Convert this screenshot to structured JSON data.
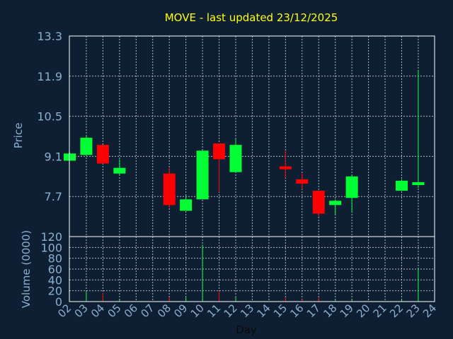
{
  "chart_data": {
    "type": "candlestick",
    "title": "MOVE - last updated 23/12/2025",
    "xlabel": "Day",
    "price_panel": {
      "ylabel": "Price",
      "ylim": [
        6.3,
        13.3
      ],
      "yticks": [
        "13.3",
        "11.9",
        "10.5",
        "9.1",
        "7.7"
      ],
      "ytick_values": [
        13.3,
        11.9,
        10.5,
        9.1,
        7.7
      ],
      "grid": true
    },
    "volume_panel": {
      "ylabel": "Volume (0000)",
      "ylim": [
        0,
        120
      ],
      "yticks": [
        "120",
        "100",
        "80",
        "60",
        "40",
        "20",
        "0"
      ],
      "ytick_values": [
        120,
        100,
        80,
        60,
        40,
        20,
        0
      ],
      "grid": true
    },
    "x_ticks": [
      "02",
      "03",
      "04",
      "05",
      "06",
      "07",
      "08",
      "09",
      "10",
      "11",
      "12",
      "13",
      "14",
      "15",
      "16",
      "17",
      "18",
      "19",
      "20",
      "21",
      "22",
      "23",
      "24"
    ],
    "up_color": "#00ff33",
    "down_color": "#ff0000",
    "candles": [
      {
        "day": 2,
        "open": 8.95,
        "close": 9.2,
        "high": 9.25,
        "low": 8.95,
        "volume": 0
      },
      {
        "day": 3,
        "open": 9.15,
        "close": 9.75,
        "high": 9.85,
        "low": 9.1,
        "volume": 18
      },
      {
        "day": 4,
        "open": 9.5,
        "close": 8.85,
        "high": 9.5,
        "low": 8.85,
        "volume": 16
      },
      {
        "day": 5,
        "open": 8.5,
        "close": 8.7,
        "high": 9.0,
        "low": 8.45,
        "volume": 3
      },
      {
        "day": 8,
        "open": 8.5,
        "close": 7.4,
        "high": 8.7,
        "low": 7.3,
        "volume": 8
      },
      {
        "day": 9,
        "open": 7.2,
        "close": 7.6,
        "high": 7.75,
        "low": 7.2,
        "volume": 8
      },
      {
        "day": 10,
        "open": 7.6,
        "close": 9.3,
        "high": 9.3,
        "low": 7.6,
        "volume": 105
      },
      {
        "day": 11,
        "open": 9.55,
        "close": 9.0,
        "high": 9.55,
        "low": 7.85,
        "volume": 20
      },
      {
        "day": 12,
        "open": 8.55,
        "close": 9.5,
        "high": 9.7,
        "low": 8.55,
        "volume": 8
      },
      {
        "day": 15,
        "open": 8.75,
        "close": 8.65,
        "high": 9.3,
        "low": 8.35,
        "volume": 8
      },
      {
        "day": 16,
        "open": 8.3,
        "close": 8.15,
        "high": 8.5,
        "low": 7.95,
        "volume": 4
      },
      {
        "day": 17,
        "open": 7.9,
        "close": 7.1,
        "high": 7.9,
        "low": 7.0,
        "volume": 8
      },
      {
        "day": 18,
        "open": 7.4,
        "close": 7.55,
        "high": 7.6,
        "low": 7.05,
        "volume": 3
      },
      {
        "day": 19,
        "open": 7.65,
        "close": 8.4,
        "high": 8.45,
        "low": 7.15,
        "volume": 3
      },
      {
        "day": 22,
        "open": 7.9,
        "close": 8.25,
        "high": 8.3,
        "low": 7.9,
        "volume": 3
      },
      {
        "day": 23,
        "open": 8.1,
        "close": 8.2,
        "high": 12.1,
        "low": 8.0,
        "volume": 60
      }
    ]
  }
}
